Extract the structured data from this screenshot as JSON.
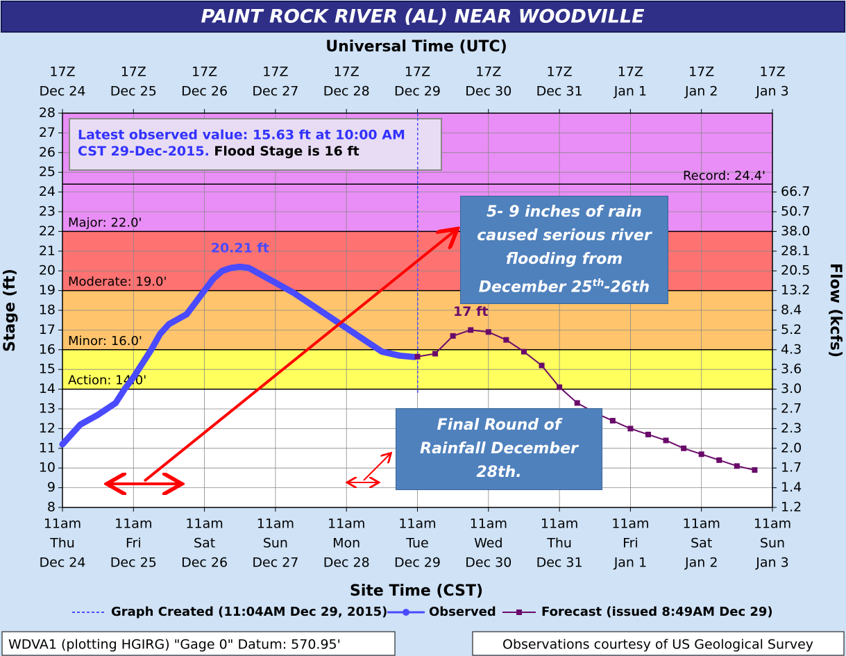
{
  "chart_data": {
    "type": "line",
    "title": "PAINT ROCK RIVER (AL) NEAR WOODVILLE",
    "x2_axis_label": "Universal Time (UTC)",
    "x_axis_label": "Site Time (CST)",
    "y_axis_label": "Stage (ft)",
    "y2_axis_label": "Flow (kcfs)",
    "xlim": [
      0,
      240
    ],
    "ylim": [
      8,
      28
    ],
    "yticks": [
      8,
      9,
      10,
      11,
      12,
      13,
      14,
      15,
      16,
      17,
      18,
      19,
      20,
      21,
      22,
      23,
      24,
      25,
      26,
      27,
      28
    ],
    "xticks": [
      {
        "value": 0,
        "label": [
          "11am",
          "Thu",
          "Dec 24"
        ]
      },
      {
        "value": 24,
        "label": [
          "11am",
          "Fri",
          "Dec 25"
        ]
      },
      {
        "value": 48,
        "label": [
          "11am",
          "Sat",
          "Dec 26"
        ]
      },
      {
        "value": 72,
        "label": [
          "11am",
          "Sun",
          "Dec 27"
        ]
      },
      {
        "value": 96,
        "label": [
          "11am",
          "Mon",
          "Dec 28"
        ]
      },
      {
        "value": 120,
        "label": [
          "11am",
          "Tue",
          "Dec 29"
        ]
      },
      {
        "value": 144,
        "label": [
          "11am",
          "Wed",
          "Dec 30"
        ]
      },
      {
        "value": 168,
        "label": [
          "11am",
          "Thu",
          "Dec 31"
        ]
      },
      {
        "value": 192,
        "label": [
          "11am",
          "Fri",
          "Jan 1"
        ]
      },
      {
        "value": 216,
        "label": [
          "11am",
          "Sat",
          "Jan 2"
        ]
      },
      {
        "value": 240,
        "label": [
          "11am",
          "Sun",
          "Jan 3"
        ]
      }
    ],
    "x2ticks": [
      {
        "value": 0,
        "label": [
          "17Z",
          "Dec 24"
        ]
      },
      {
        "value": 24,
        "label": [
          "17Z",
          "Dec 25"
        ]
      },
      {
        "value": 48,
        "label": [
          "17Z",
          "Dec 26"
        ]
      },
      {
        "value": 72,
        "label": [
          "17Z",
          "Dec 27"
        ]
      },
      {
        "value": 96,
        "label": [
          "17Z",
          "Dec 28"
        ]
      },
      {
        "value": 120,
        "label": [
          "17Z",
          "Dec 29"
        ]
      },
      {
        "value": 144,
        "label": [
          "17Z",
          "Dec 30"
        ]
      },
      {
        "value": 168,
        "label": [
          "17Z",
          "Dec 31"
        ]
      },
      {
        "value": 192,
        "label": [
          "17Z",
          "Jan 1"
        ]
      },
      {
        "value": 216,
        "label": [
          "17Z",
          "Jan 2"
        ]
      },
      {
        "value": 240,
        "label": [
          "17Z",
          "Jan 3"
        ]
      }
    ],
    "y2ticks": [
      {
        "value": 66.7,
        "label": "66.7",
        "stage": 24
      },
      {
        "value": 50.7,
        "label": "50.7",
        "stage": 23
      },
      {
        "value": 38,
        "label": "38.0",
        "stage": 22
      },
      {
        "value": 28.1,
        "label": "28.1",
        "stage": 21
      },
      {
        "value": 20.5,
        "label": "20.5",
        "stage": 20
      },
      {
        "value": 13.2,
        "label": "13.2",
        "stage": 19
      },
      {
        "value": 8.4,
        "label": "8.4",
        "stage": 18
      },
      {
        "value": 5.2,
        "label": "5.2",
        "stage": 17
      },
      {
        "value": 4.3,
        "label": "4.3",
        "stage": 16
      },
      {
        "value": 3.6,
        "label": "3.6",
        "stage": 15
      },
      {
        "value": 3,
        "label": "3.0",
        "stage": 14
      },
      {
        "value": 2.7,
        "label": "2.7",
        "stage": 13
      },
      {
        "value": 2.3,
        "label": "2.3",
        "stage": 12
      },
      {
        "value": 2,
        "label": "2.0",
        "stage": 11
      },
      {
        "value": 1.7,
        "label": "1.7",
        "stage": 10
      },
      {
        "value": 1.4,
        "label": "1.4",
        "stage": 9
      },
      {
        "value": 1.2,
        "label": "1.2",
        "stage": 8
      }
    ],
    "grid": true,
    "flood_categories": [
      {
        "name": "Action",
        "label": "Action: 14.0'",
        "value": 14,
        "color": "#ffff5e"
      },
      {
        "name": "Minor",
        "label": "Minor: 16.0'",
        "value": 16,
        "color": "#ffc46c"
      },
      {
        "name": "Moderate",
        "label": "Moderate: 19.0'",
        "value": 19,
        "color": "#ff7272"
      },
      {
        "name": "Major",
        "label": "Major: 22.0'",
        "value": 22,
        "color": "#e98ef6"
      }
    ],
    "record": {
      "label": "Record: 24.4'",
      "value": 24.4
    },
    "graph_created": {
      "label": "Graph Created (11:04AM Dec 29, 2015)",
      "x": 120.07,
      "color": "#4b4bff"
    },
    "series": [
      {
        "name": "Observed",
        "color": "#4a4aff",
        "x": [
          0,
          6,
          12,
          18,
          21,
          24,
          27,
          30,
          33,
          36,
          42,
          45,
          48,
          51,
          54,
          57,
          60,
          63,
          66,
          72,
          78,
          84,
          90,
          96,
          102,
          108,
          114,
          119
        ],
        "values": [
          11.2,
          12.2,
          12.7,
          13.3,
          14.0,
          14.6,
          15.3,
          16.0,
          16.8,
          17.3,
          17.8,
          18.4,
          19.0,
          19.6,
          20.0,
          20.15,
          20.21,
          20.15,
          19.9,
          19.4,
          18.9,
          18.3,
          17.7,
          17.1,
          16.5,
          15.9,
          15.7,
          15.63
        ],
        "value_labels": [
          null,
          null,
          null,
          null,
          null,
          null,
          null,
          null,
          null,
          null,
          null,
          null,
          null,
          null,
          null,
          null,
          "20.21 ft",
          null,
          null,
          null,
          null,
          null,
          null,
          null,
          null,
          null,
          null,
          null
        ]
      },
      {
        "name": "Forecast (issued 8:49AM Dec 29)",
        "color": "#6a0a6a",
        "x": [
          120,
          126,
          132,
          138,
          144,
          150,
          156,
          162,
          168,
          174,
          180,
          186,
          192,
          198,
          204,
          210,
          216,
          222,
          228,
          234
        ],
        "values": [
          15.65,
          15.8,
          16.7,
          17.0,
          16.9,
          16.5,
          15.9,
          15.2,
          14.1,
          13.3,
          12.8,
          12.4,
          12.0,
          11.7,
          11.4,
          11.0,
          10.7,
          10.4,
          10.1,
          9.9
        ],
        "value_labels": [
          null,
          null,
          null,
          "17 ft",
          null,
          null,
          null,
          null,
          null,
          null,
          null,
          null,
          null,
          null,
          null,
          null,
          null,
          null,
          null,
          null
        ]
      }
    ],
    "info": [
      "Latest observed value: 15.63 ft at 10:00 AM",
      "CST 29-Dec-2015.",
      "Flood Stage is 16 ft"
    ],
    "footer_left": "WDVA1 (plotting HGIRG) \"Gage 0\" Datum: 570.95'",
    "footer_right": "Observations courtesy of US Geological Survey",
    "annotations": [
      {
        "lines": [
          "5- 9 inches of rain",
          "caused serious river",
          "flooding  from"
        ],
        "last": [
          "December 25",
          "th",
          "-26th"
        ]
      },
      {
        "lines": [
          "Final Round of",
          "Rainfall December",
          "28th."
        ]
      }
    ]
  }
}
